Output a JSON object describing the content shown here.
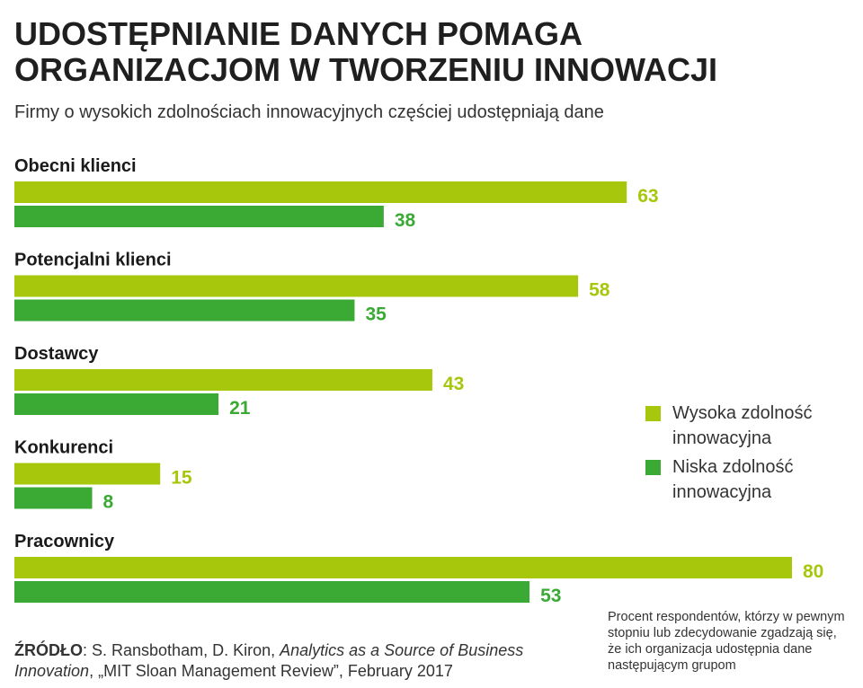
{
  "title": "UDOSTĘPNIANIE DANYCH POMAGA\nORGANIZACJOM W TWORZENIU INNOWACJI",
  "subtitle": "Firmy o wysokich zdolnościach innowacyjnych częściej udostępniają dane",
  "colors": {
    "high": "#a6c70c",
    "low": "#3aaa35",
    "high_text": "#a6c70c",
    "low_text": "#3aaa35"
  },
  "chart_data": {
    "type": "bar",
    "orientation": "horizontal",
    "categories": [
      "Obecni klienci",
      "Potencjalni klienci",
      "Dostawcy",
      "Konkurenci",
      "Pracownicy"
    ],
    "series": [
      {
        "name": "Wysoka zdolność innowacyjna",
        "values": [
          63,
          58,
          43,
          15,
          80
        ]
      },
      {
        "name": "Niska zdolność innowacyjna",
        "values": [
          38,
          35,
          21,
          8,
          53
        ]
      }
    ],
    "xlim": [
      0,
      80
    ],
    "grid": false,
    "legend_position": "right"
  },
  "legend": [
    {
      "label": "Wysoka zdolność innowacyjna"
    },
    {
      "label": "Niska zdolność innowacyjna"
    }
  ],
  "note": "Procent respondentów, którzy w pewnym stopniu lub zdecydowanie zgadzają się, że ich organizacja udostępnia dane następującym grupom",
  "source": {
    "label": "ŹRÓDŁO",
    "authors": ": S. Ransbotham, D. Kiron, ",
    "work_title": "Analytics as a Source of Business Innovation",
    "rest": ", „MIT Sloan Management Review”, February 2017"
  }
}
